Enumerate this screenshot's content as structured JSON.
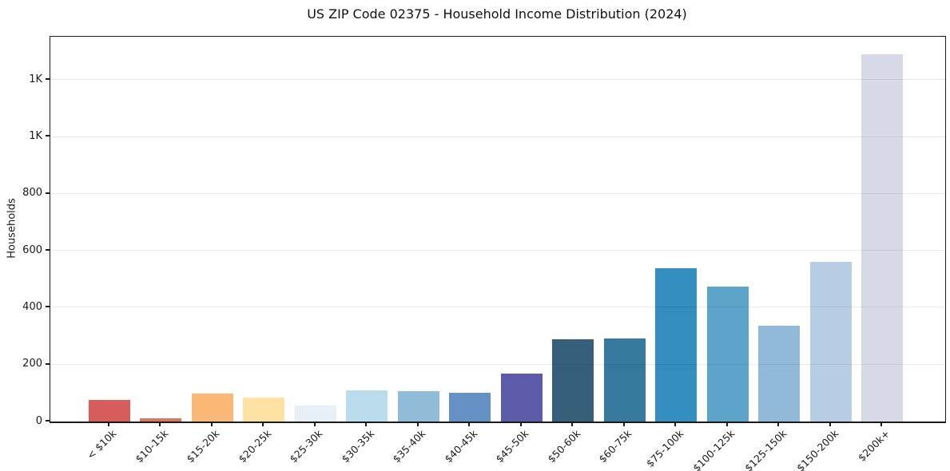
{
  "chart_data": {
    "type": "bar",
    "title": "US ZIP Code 02375 - Household Income Distribution (2024)",
    "xlabel": "",
    "ylabel": "Households",
    "categories": [
      "< $10k",
      "$10-15k",
      "$15-20k",
      "$20-25k",
      "$25-30k",
      "$30-35k",
      "$35-40k",
      "$40-45k",
      "$45-50k",
      "$50-60k",
      "$60-75k",
      "$75-100k",
      "$100-125k",
      "$125-150k",
      "$150-200k",
      "$200k+"
    ],
    "values": [
      75,
      10,
      97,
      85,
      55,
      110,
      106,
      101,
      169,
      290,
      291,
      539,
      474,
      338,
      561,
      1291
    ],
    "bar_colors": [
      "#d65d5b",
      "#d3795b",
      "#f9b876",
      "#fde2a3",
      "#e6f0f6",
      "#bbdcec",
      "#91bcd8",
      "#6691c4",
      "#5c5baa",
      "#36607a",
      "#35799d",
      "#338dbf",
      "#5ca4c9",
      "#91b9da",
      "#b8cce4",
      "#d7d9e8"
    ],
    "ylim": [
      0,
      1352
    ],
    "ytick_values": [
      0,
      200,
      400,
      600,
      800,
      1000,
      1200
    ],
    "ytick_labels": [
      "0",
      "200",
      "400",
      "600",
      "800",
      "1K",
      "1K"
    ],
    "grid": "horizontal",
    "legend": "none"
  },
  "colors": {
    "background": "#ffffff",
    "spine": "#1a1a1a",
    "grid_line": "rgba(0,0,0,0.08)",
    "text": "#1a1a1a"
  }
}
